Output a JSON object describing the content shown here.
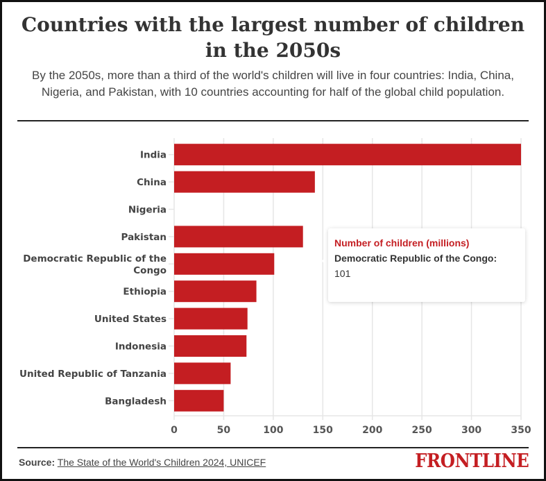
{
  "header": {
    "title": "Countries with the largest number of children in the 2050s",
    "subtitle": "By the 2050s, more than a third of the world's children will live in four countries: India, China, Nigeria, and Pakistan, with 10 countries accounting for half of the global child population."
  },
  "chart_data": {
    "type": "bar",
    "orientation": "horizontal",
    "title": "Countries with the largest number of children in the 2050s",
    "xlabel": "",
    "ylabel": "",
    "categories": [
      "India",
      "China",
      "Nigeria",
      "Pakistan",
      "Democratic Republic of the Congo",
      "Ethiopia",
      "United States",
      "Indonesia",
      "United Republic of Tanzania",
      "Bangladesh"
    ],
    "category_label_lines": [
      [
        "India"
      ],
      [
        "China"
      ],
      [
        "Nigeria"
      ],
      [
        "Pakistan"
      ],
      [
        "Democratic Republic of the",
        "Congo"
      ],
      [
        "Ethiopia"
      ],
      [
        "United States"
      ],
      [
        "Indonesia"
      ],
      [
        "United Republic of Tanzania"
      ],
      [
        "Bangladesh"
      ]
    ],
    "series": [
      {
        "name": "Number of children (millions)",
        "color": "#c41e22",
        "values": [
          350,
          142,
          null,
          130,
          101,
          83,
          74,
          73,
          57,
          50
        ]
      }
    ],
    "xlim": [
      0,
      350
    ],
    "xticks": [
      0,
      50,
      100,
      150,
      200,
      250,
      300,
      350
    ],
    "grid": "vertical",
    "legend": "none",
    "tooltip": {
      "series": "Number of children (millions)",
      "category": "Democratic Republic of the Congo:",
      "value": "101"
    }
  },
  "footer": {
    "source_label": "Source:",
    "source_text": "The State of the World's Children 2024, UNICEF",
    "brand": "FRONTLINE"
  },
  "colors": {
    "bar": "#c41e22",
    "brand": "#c41e22",
    "grid": "#e6e6e6"
  }
}
